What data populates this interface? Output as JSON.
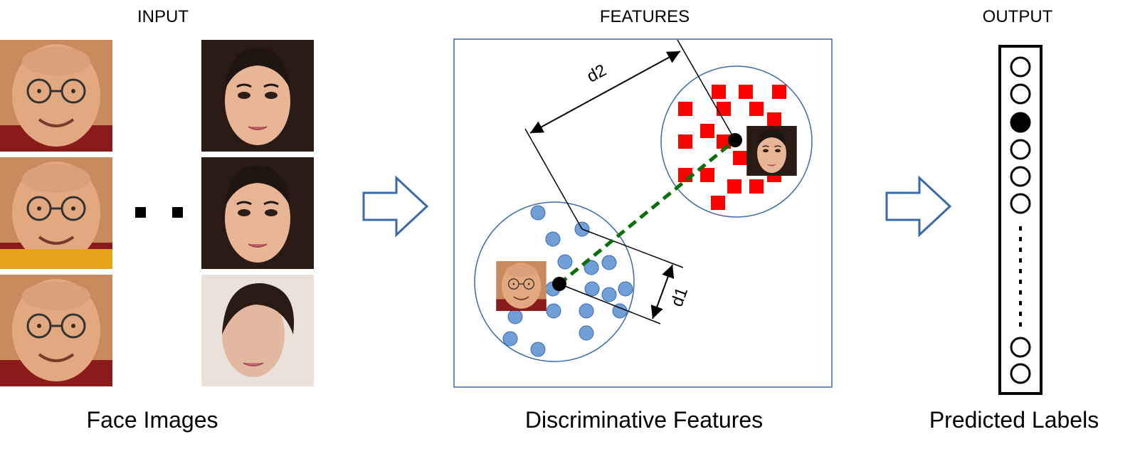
{
  "headings": {
    "input": "INPUT",
    "features": "FEATURES",
    "output": "OUTPUT"
  },
  "captions": {
    "input": "Face Images",
    "features": "Discriminative Features",
    "output": "Predicted Labels"
  },
  "distance_labels": {
    "d1": "d1",
    "d2": "d2"
  },
  "colors": {
    "arrow_outline": "#3b6aa8",
    "feature_box": "#3b6aa8",
    "blue_class": "#6f9fd6",
    "red_class": "#ff0000",
    "center_link": "#0b6e0b"
  },
  "output_labels": {
    "count_shown": 8,
    "active_index": 2
  }
}
